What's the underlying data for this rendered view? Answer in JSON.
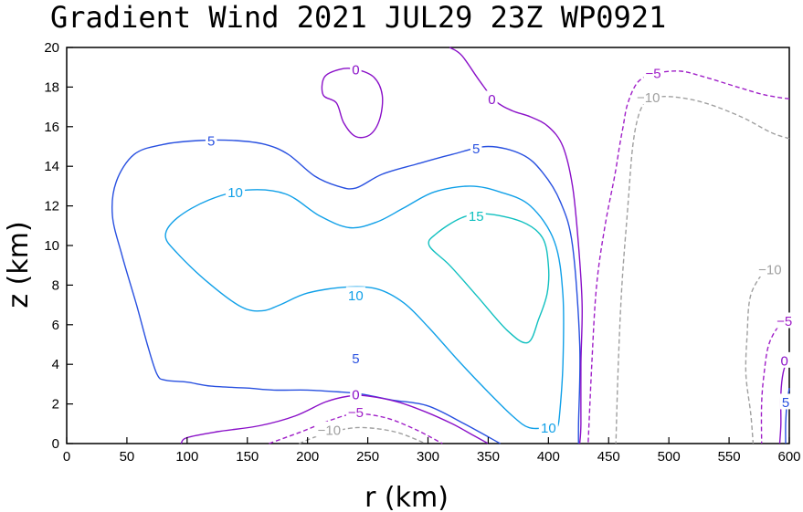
{
  "chart_data": {
    "type": "contour",
    "title": "Gradient Wind 2021 JUL29 23Z   WP0921",
    "xlabel": "r (km)",
    "ylabel": "z (km)",
    "xlim": [
      0,
      600
    ],
    "ylim": [
      0,
      20
    ],
    "xticks": [
      0,
      50,
      100,
      150,
      200,
      250,
      300,
      350,
      400,
      450,
      500,
      550,
      600
    ],
    "yticks": [
      0,
      2,
      4,
      6,
      8,
      10,
      12,
      14,
      16,
      18,
      20
    ],
    "grid": false,
    "legend": "none",
    "levels": [
      {
        "value": -10,
        "label": "−10",
        "color": "#a0a0a0",
        "dashed": true
      },
      {
        "value": -5,
        "label": "−5",
        "color": "#a020c8",
        "dashed": true
      },
      {
        "value": 0,
        "label": "0",
        "color": "#8a10c8",
        "dashed": false
      },
      {
        "value": 5,
        "label": "5",
        "color": "#2850e0",
        "dashed": false
      },
      {
        "value": 10,
        "label": "10",
        "color": "#10a0e8",
        "dashed": false
      },
      {
        "value": 15,
        "label": "15",
        "color": "#10c0c0",
        "dashed": false
      }
    ],
    "contours": [
      {
        "level": 15,
        "closed": true,
        "points": [
          [
            348,
            11.6
          ],
          [
            378,
            11.2
          ],
          [
            395,
            10.4
          ],
          [
            400,
            9.0
          ],
          [
            399,
            7.6
          ],
          [
            392,
            6.3
          ],
          [
            383,
            5.1
          ],
          [
            366,
            5.7
          ],
          [
            340,
            7.5
          ],
          [
            318,
            9.0
          ],
          [
            301,
            10.0
          ],
          [
            307,
            10.6
          ],
          [
            328,
            11.4
          ]
        ],
        "labels": [
          [
            340,
            11.5
          ]
        ]
      },
      {
        "level": 10,
        "closed": false,
        "points": [
          [
            400,
            0.8
          ],
          [
            384,
            0.8
          ],
          [
            370,
            1.4
          ],
          [
            350,
            2.6
          ],
          [
            325,
            4.2
          ],
          [
            300,
            5.9
          ],
          [
            280,
            7.1
          ],
          [
            258,
            7.8
          ],
          [
            232,
            7.9
          ],
          [
            200,
            7.6
          ],
          [
            177,
            7.0
          ],
          [
            162,
            6.7
          ],
          [
            145,
            6.9
          ],
          [
            118,
            8.1
          ],
          [
            92,
            9.6
          ],
          [
            82,
            10.5
          ],
          [
            92,
            11.4
          ],
          [
            118,
            12.3
          ],
          [
            150,
            12.8
          ],
          [
            182,
            12.6
          ],
          [
            210,
            11.5
          ],
          [
            235,
            10.9
          ],
          [
            258,
            11.2
          ],
          [
            280,
            11.9
          ],
          [
            305,
            12.7
          ],
          [
            335,
            13.0
          ],
          [
            360,
            12.7
          ],
          [
            385,
            12.0
          ],
          [
            405,
            10.2
          ],
          [
            412,
            7.5
          ],
          [
            412,
            4.0
          ],
          [
            409,
            1.3
          ],
          [
            407,
            0.8
          ]
        ],
        "labels": [
          [
            140,
            12.7
          ],
          [
            240,
            7.5
          ],
          [
            400,
            0.8
          ]
        ]
      },
      {
        "level": 5,
        "closed": false,
        "points": [
          [
            360,
            0
          ],
          [
            330,
            1.0
          ],
          [
            300,
            1.9
          ],
          [
            270,
            2.2
          ],
          [
            245,
            2.5
          ],
          [
            228,
            2.6
          ],
          [
            200,
            2.7
          ],
          [
            172,
            2.7
          ],
          [
            150,
            2.8
          ],
          [
            120,
            2.9
          ],
          [
            100,
            3.1
          ],
          [
            82,
            3.2
          ],
          [
            75,
            3.5
          ],
          [
            67,
            5.0
          ],
          [
            58,
            7.0
          ],
          [
            46,
            9.5
          ],
          [
            38,
            11.5
          ],
          [
            41,
            13.2
          ],
          [
            56,
            14.6
          ],
          [
            80,
            15.1
          ],
          [
            110,
            15.3
          ],
          [
            140,
            15.3
          ],
          [
            165,
            15.1
          ],
          [
            184,
            14.6
          ],
          [
            206,
            13.5
          ],
          [
            225,
            13.0
          ],
          [
            240,
            12.9
          ],
          [
            262,
            13.6
          ],
          [
            290,
            14.1
          ],
          [
            320,
            14.6
          ],
          [
            350,
            15.0
          ],
          [
            378,
            14.6
          ],
          [
            395,
            13.7
          ],
          [
            410,
            12.2
          ],
          [
            420,
            10.0
          ],
          [
            426,
            5.0
          ],
          [
            425,
            1.0
          ],
          [
            425,
            0
          ]
        ],
        "labels": [
          [
            120,
            15.3
          ],
          [
            240,
            4.3
          ],
          [
            340,
            14.9
          ]
        ]
      },
      {
        "level": 0,
        "closed": false,
        "points": [
          [
            95,
            0
          ],
          [
            100,
            0.3
          ],
          [
            125,
            0.6
          ],
          [
            160,
            0.9
          ],
          [
            190,
            1.4
          ],
          [
            215,
            2.1
          ],
          [
            235,
            2.4
          ],
          [
            250,
            2.4
          ],
          [
            275,
            2.1
          ],
          [
            298,
            1.6
          ],
          [
            320,
            1.0
          ],
          [
            338,
            0.4
          ],
          [
            350,
            0
          ]
        ],
        "labels": [
          [
            240,
            2.5
          ]
        ]
      },
      {
        "level": 0,
        "closed": true,
        "points": [
          [
            240,
            18.9
          ],
          [
            255,
            18.5
          ],
          [
            262,
            17.6
          ],
          [
            260,
            16.4
          ],
          [
            252,
            15.6
          ],
          [
            240,
            15.5
          ],
          [
            230,
            16.2
          ],
          [
            224,
            17.2
          ],
          [
            213,
            17.6
          ],
          [
            214,
            18.5
          ],
          [
            227,
            18.9
          ]
        ],
        "labels": [
          [
            240,
            18.9
          ]
        ]
      },
      {
        "level": 0,
        "closed": false,
        "points": [
          [
            318,
            20
          ],
          [
            328,
            19.6
          ],
          [
            343,
            18.3
          ],
          [
            356,
            17.3
          ],
          [
            370,
            16.8
          ],
          [
            385,
            16.5
          ],
          [
            400,
            16.0
          ],
          [
            412,
            15.0
          ],
          [
            420,
            13.0
          ],
          [
            425,
            10.0
          ],
          [
            428,
            7.0
          ],
          [
            427,
            4.0
          ],
          [
            427,
            1.0
          ],
          [
            426,
            0
          ]
        ],
        "labels": [
          [
            353,
            17.4
          ]
        ]
      },
      {
        "level": -5,
        "closed": false,
        "points": [
          [
            168,
            0
          ],
          [
            195,
            0.6
          ],
          [
            220,
            1.2
          ],
          [
            240,
            1.5
          ],
          [
            265,
            1.3
          ],
          [
            290,
            0.7
          ],
          [
            312,
            0
          ]
        ],
        "labels": [
          [
            240,
            1.6
          ]
        ]
      },
      {
        "level": -5,
        "closed": false,
        "points": [
          [
            600,
            17.4
          ],
          [
            580,
            17.6
          ],
          [
            557,
            18.0
          ],
          [
            530,
            18.5
          ],
          [
            510,
            18.8
          ],
          [
            490,
            18.7
          ],
          [
            475,
            18.3
          ],
          [
            466,
            17.2
          ],
          [
            462,
            16.0
          ],
          [
            459,
            15.0
          ],
          [
            455,
            13.5
          ],
          [
            447,
            11.0
          ],
          [
            440,
            8.0
          ],
          [
            436,
            4.0
          ],
          [
            433,
            0
          ]
        ],
        "labels": [
          [
            487,
            18.7
          ]
        ]
      },
      {
        "level": -5,
        "closed": false,
        "points": [
          [
            600,
            6.3
          ],
          [
            592,
            6.0
          ],
          [
            583,
            5.0
          ],
          [
            579,
            3.5
          ],
          [
            577,
            2.0
          ],
          [
            577,
            0
          ]
        ],
        "labels": [
          [
            596,
            6.2
          ]
        ]
      },
      {
        "level": -10,
        "closed": false,
        "points": [
          [
            193,
            0
          ],
          [
            210,
            0.4
          ],
          [
            240,
            0.8
          ],
          [
            272,
            0.6
          ],
          [
            298,
            0
          ]
        ],
        "labels": [
          [
            218,
            0.7
          ]
        ]
      },
      {
        "level": -10,
        "closed": false,
        "points": [
          [
            600,
            15.4
          ],
          [
            585,
            15.7
          ],
          [
            560,
            16.5
          ],
          [
            530,
            17.2
          ],
          [
            505,
            17.5
          ],
          [
            488,
            17.5
          ],
          [
            482,
            17.4
          ],
          [
            475,
            16.6
          ],
          [
            470,
            15.0
          ],
          [
            466,
            12.0
          ],
          [
            461,
            8.0
          ],
          [
            458,
            4.0
          ],
          [
            456,
            0
          ]
        ],
        "labels": [
          [
            483,
            17.5
          ]
        ]
      },
      {
        "level": -10,
        "closed": false,
        "points": [
          [
            580,
            8.8
          ],
          [
            568,
            7.5
          ],
          [
            565,
            5.5
          ],
          [
            564,
            3.5
          ],
          [
            568,
            1.5
          ],
          [
            570,
            0
          ]
        ],
        "labels": [
          [
            584,
            8.8
          ]
        ]
      },
      {
        "level": 0,
        "closed": false,
        "points": [
          [
            600,
            4.5
          ],
          [
            595,
            3.6
          ],
          [
            593,
            2.5
          ],
          [
            593,
            1.0
          ],
          [
            592,
            0
          ]
        ],
        "labels": [
          [
            596,
            4.2
          ]
        ]
      },
      {
        "level": 5,
        "closed": false,
        "points": [
          [
            600,
            2.8
          ],
          [
            598,
            2.0
          ],
          [
            597,
            1.0
          ],
          [
            597,
            0
          ]
        ],
        "labels": [
          [
            597,
            2.1
          ]
        ]
      }
    ]
  }
}
